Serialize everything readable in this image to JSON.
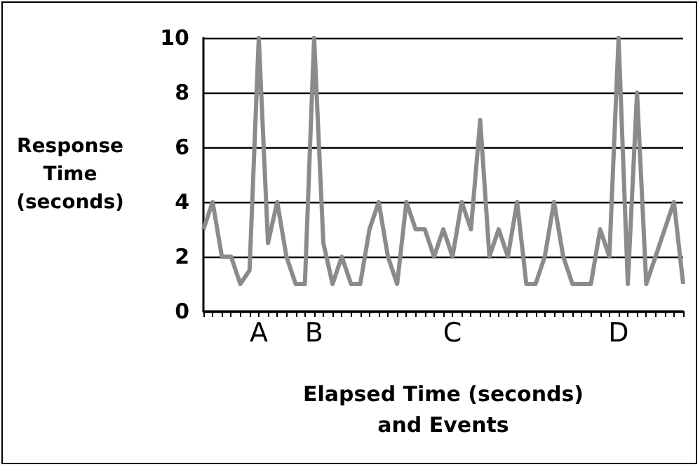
{
  "chart_data": {
    "type": "line",
    "xlabel": "Elapsed Time (seconds)\nand Events",
    "ylabel": "Response\nTime\n(seconds)",
    "categories": [
      null,
      null,
      null,
      null,
      null,
      null,
      "A",
      null,
      null,
      null,
      null,
      null,
      "B",
      null,
      null,
      null,
      null,
      null,
      null,
      null,
      null,
      null,
      null,
      null,
      null,
      null,
      null,
      "C",
      null,
      null,
      null,
      null,
      null,
      null,
      null,
      null,
      null,
      null,
      null,
      null,
      null,
      null,
      null,
      null,
      null,
      "D",
      null,
      null,
      null,
      null,
      null,
      null,
      null
    ],
    "series": [
      {
        "color": "#8a8c8c",
        "values": [
          3,
          4,
          2,
          2,
          1,
          1.5,
          10,
          2.5,
          4,
          2,
          1,
          1,
          10,
          2.5,
          1,
          2,
          1,
          1,
          3,
          4,
          2,
          1,
          4,
          3,
          3,
          2,
          3,
          2,
          4,
          3,
          7,
          2,
          3,
          2,
          4,
          1,
          1,
          2,
          4,
          2,
          1,
          1,
          1,
          3,
          2,
          10,
          1,
          8,
          1,
          2,
          3,
          4,
          1
        ]
      }
    ],
    "ylim": [
      0,
      10
    ],
    "yticks": [
      0,
      2,
      4,
      6,
      8,
      10
    ],
    "grid": "y",
    "marker": "none",
    "line_style": "solid"
  }
}
